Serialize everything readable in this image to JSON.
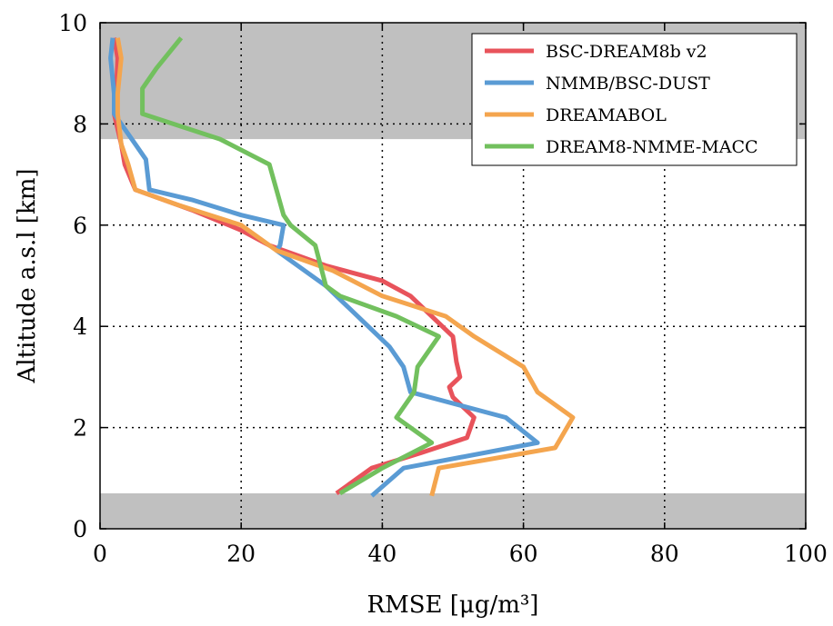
{
  "chart_data": {
    "type": "line",
    "xlabel": "RMSE [μg/m³]",
    "ylabel": "Altitude a.s.l [km]",
    "xlim": [
      0,
      100
    ],
    "ylim": [
      0,
      10
    ],
    "xticks": [
      "0",
      "20",
      "40",
      "60",
      "80",
      "100"
    ],
    "yticks": [
      "0",
      "2",
      "4",
      "6",
      "8",
      "10"
    ],
    "grid": true,
    "legend_position": "top-right",
    "shaded_bands": [
      {
        "y0": 0,
        "y1": 0.7,
        "color": "#c0c0c0"
      },
      {
        "y0": 7.7,
        "y1": 10,
        "color": "#c0c0c0"
      }
    ],
    "series": [
      {
        "name": "BSC-DREAM8b v2",
        "color": "#e8535b",
        "points": [
          [
            33.5,
            0.7
          ],
          [
            38.5,
            1.2
          ],
          [
            45.5,
            1.5
          ],
          [
            52,
            1.8
          ],
          [
            53,
            2.2
          ],
          [
            50,
            2.6
          ],
          [
            49.5,
            2.8
          ],
          [
            51,
            3.0
          ],
          [
            50.5,
            3.3
          ],
          [
            50,
            3.8
          ],
          [
            47,
            4.2
          ],
          [
            44,
            4.6
          ],
          [
            40,
            4.9
          ],
          [
            32,
            5.2
          ],
          [
            24,
            5.6
          ],
          [
            20,
            5.9
          ],
          [
            13,
            6.3
          ],
          [
            5,
            6.7
          ],
          [
            3.5,
            7.2
          ],
          [
            3,
            7.6
          ],
          [
            2,
            8.2
          ],
          [
            2.3,
            8.6
          ],
          [
            2.5,
            9.3
          ],
          [
            2,
            9.7
          ]
        ]
      },
      {
        "name": "NMMB/BSC-DUST",
        "color": "#5a9bd4",
        "points": [
          [
            38.5,
            0.65
          ],
          [
            43,
            1.2
          ],
          [
            62,
            1.7
          ],
          [
            57.5,
            2.2
          ],
          [
            44,
            2.7
          ],
          [
            43,
            3.2
          ],
          [
            41,
            3.6
          ],
          [
            38,
            4.0
          ],
          [
            35,
            4.4
          ],
          [
            32,
            4.8
          ],
          [
            25,
            5.5
          ],
          [
            25.5,
            5.6
          ],
          [
            26,
            6.0
          ],
          [
            20,
            6.2
          ],
          [
            13,
            6.5
          ],
          [
            7,
            6.7
          ],
          [
            6.5,
            7.3
          ],
          [
            5,
            7.6
          ],
          [
            2,
            8.2
          ],
          [
            2,
            8.6
          ],
          [
            1.5,
            9.3
          ],
          [
            1.8,
            9.7
          ]
        ]
      },
      {
        "name": "DREAMABOL",
        "color": "#f4a54e",
        "points": [
          [
            47,
            0.65
          ],
          [
            48,
            1.2
          ],
          [
            64.5,
            1.6
          ],
          [
            67,
            2.2
          ],
          [
            62,
            2.7
          ],
          [
            60,
            3.2
          ],
          [
            53,
            3.8
          ],
          [
            49,
            4.2
          ],
          [
            40,
            4.6
          ],
          [
            33,
            5.1
          ],
          [
            25,
            5.5
          ],
          [
            20,
            6.0
          ],
          [
            11,
            6.4
          ],
          [
            5,
            6.7
          ],
          [
            4,
            7.2
          ],
          [
            3,
            7.6
          ],
          [
            2.5,
            8.2
          ],
          [
            2.5,
            8.6
          ],
          [
            3,
            9.3
          ],
          [
            2.5,
            9.7
          ]
        ]
      },
      {
        "name": "DREAM8-NMME-MACC",
        "color": "#72c05e",
        "points": [
          [
            34,
            0.7
          ],
          [
            40,
            1.2
          ],
          [
            47,
            1.7
          ],
          [
            42,
            2.2
          ],
          [
            44.5,
            2.7
          ],
          [
            45,
            3.2
          ],
          [
            48,
            3.8
          ],
          [
            42,
            4.2
          ],
          [
            34,
            4.6
          ],
          [
            32,
            4.8
          ],
          [
            30.5,
            5.6
          ],
          [
            27,
            6.0
          ],
          [
            26,
            6.2
          ],
          [
            25,
            6.7
          ],
          [
            24,
            7.2
          ],
          [
            17,
            7.7
          ],
          [
            6,
            8.2
          ],
          [
            6,
            8.7
          ],
          [
            8,
            9.1
          ],
          [
            11.5,
            9.7
          ]
        ]
      }
    ]
  }
}
